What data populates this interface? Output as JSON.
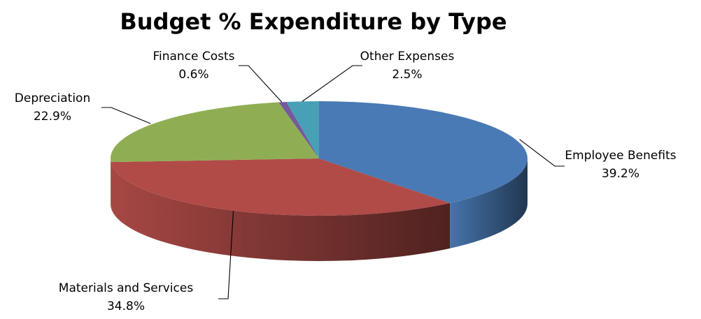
{
  "chart_data": {
    "type": "pie",
    "style": "3d",
    "title": "Budget % Expenditure by Type",
    "legend": "none",
    "slices": [
      {
        "label": "Employee Benefits",
        "value": 39.2,
        "display": "39.2%",
        "color": "#4a7ab5"
      },
      {
        "label": "Materials and Services",
        "value": 34.8,
        "display": "34.8%",
        "color": "#b04b48"
      },
      {
        "label": "Depreciation",
        "value": 22.9,
        "display": "22.9%",
        "color": "#8fae53"
      },
      {
        "label": "Finance Costs",
        "value": 0.6,
        "display": "0.6%",
        "color": "#76599a"
      },
      {
        "label": "Other Expenses",
        "value": 2.5,
        "display": "2.5%",
        "color": "#48a0b7"
      }
    ]
  }
}
